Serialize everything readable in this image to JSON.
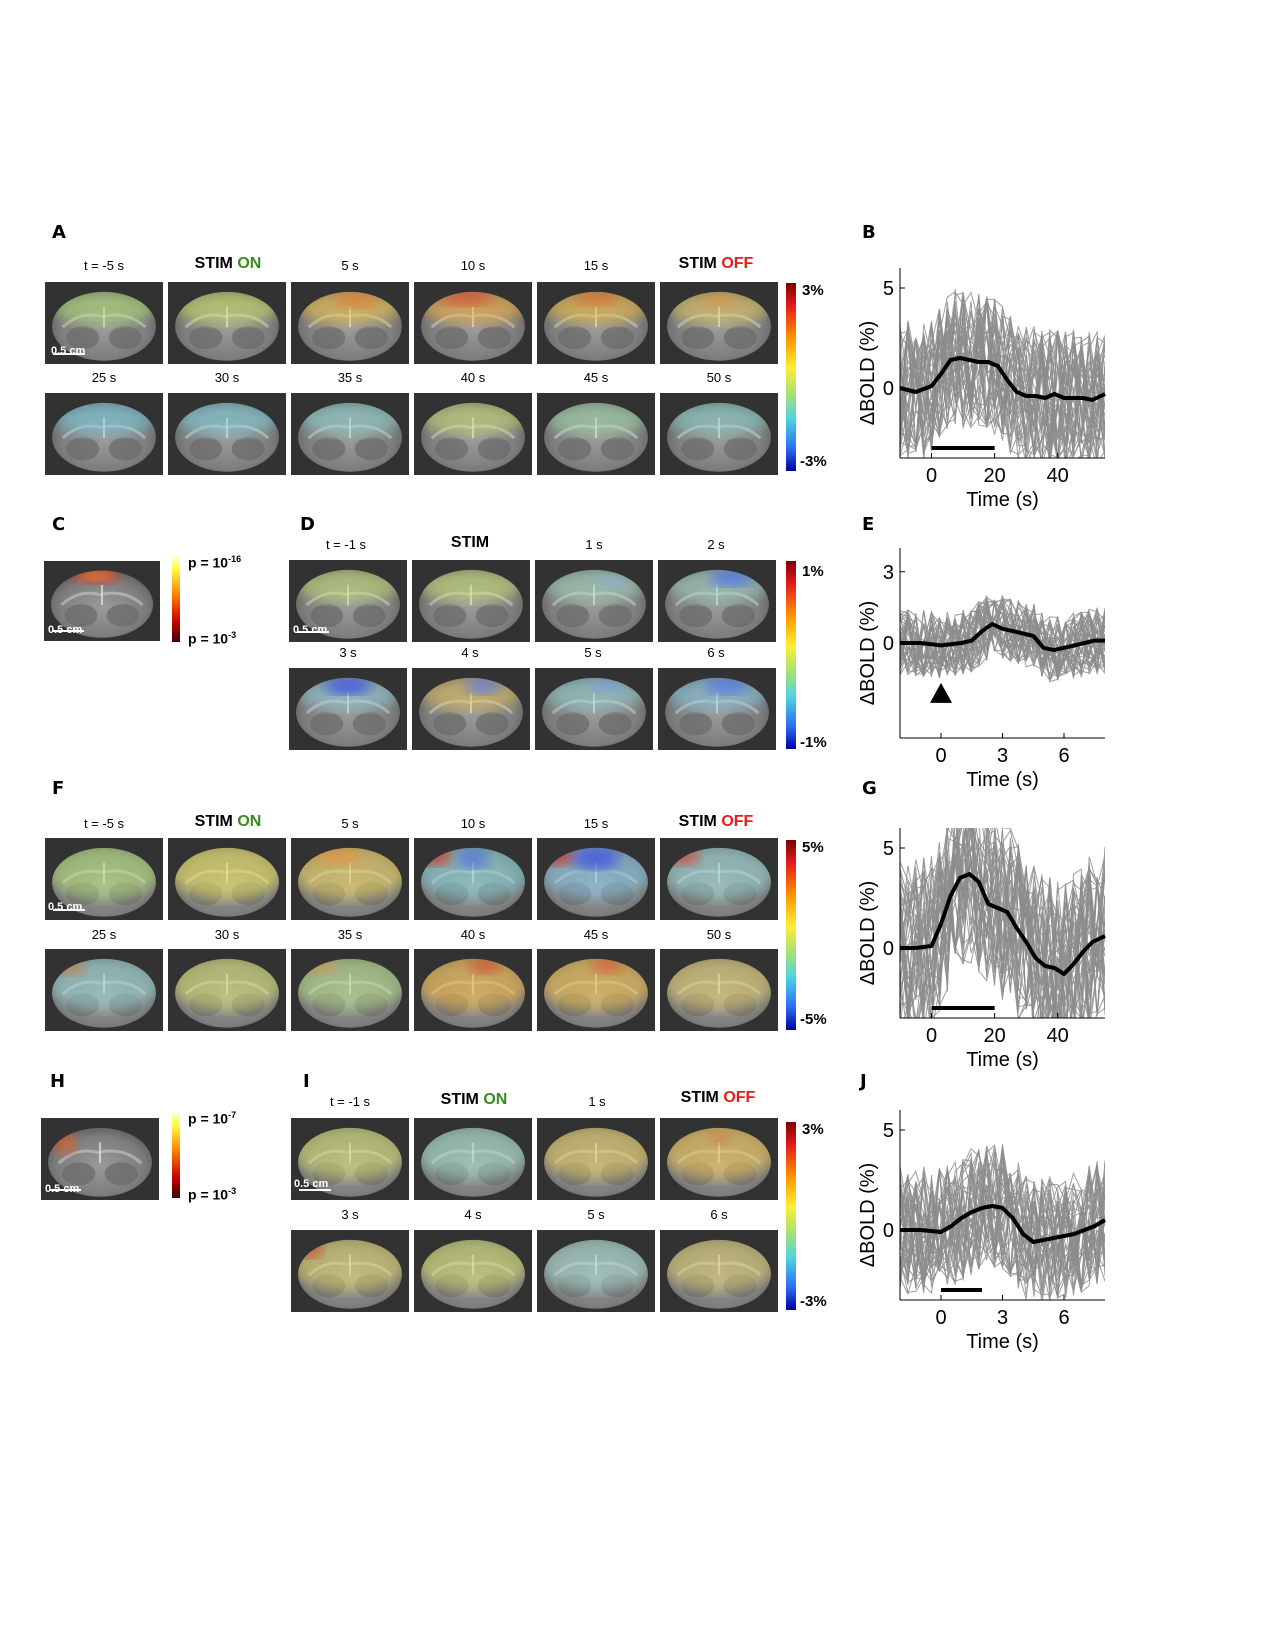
{
  "panels": {
    "A": {
      "letter": "A",
      "row1": [
        "t = -5 s",
        "",
        "5 s",
        "10 s",
        "15 s",
        ""
      ],
      "row2": [
        "25 s",
        "30 s",
        "35 s",
        "40 s",
        "45 s",
        "50 s"
      ],
      "scalebar": "0.5 cm",
      "cb_max": "3%",
      "cb_min": "-3%"
    },
    "B": {
      "letter": "B"
    },
    "C": {
      "letter": "C",
      "scalebar": "0.5 cm",
      "p_top_base": "p = 10",
      "p_top_exp": "-16",
      "p_bot_base": "p = 10",
      "p_bot_exp": "-3"
    },
    "D": {
      "letter": "D",
      "row1": [
        "t = -1 s",
        "STIM",
        "1 s",
        "2 s"
      ],
      "row2": [
        "3 s",
        "4 s",
        "5 s",
        "6 s"
      ],
      "scalebar": "0.5 cm",
      "cb_max": "1%",
      "cb_min": "-1%"
    },
    "E": {
      "letter": "E"
    },
    "F": {
      "letter": "F",
      "row1": [
        "t = -5 s",
        "",
        "5 s",
        "10 s",
        "15 s",
        ""
      ],
      "row2": [
        "25 s",
        "30 s",
        "35 s",
        "40 s",
        "45 s",
        "50 s"
      ],
      "scalebar": "0.5 cm",
      "cb_max": "5%",
      "cb_min": "-5%"
    },
    "G": {
      "letter": "G"
    },
    "H": {
      "letter": "H",
      "scalebar": "0.5 cm",
      "p_top_base": "p = 10",
      "p_top_exp": "-7",
      "p_bot_base": "p = 10",
      "p_bot_exp": "-3"
    },
    "I": {
      "letter": "I",
      "row1": [
        "t = -1 s",
        "",
        "1 s",
        ""
      ],
      "row2": [
        "3 s",
        "4 s",
        "5 s",
        "6 s"
      ],
      "scalebar": "0.5 cm",
      "cb_max": "3%",
      "cb_min": "-3%"
    },
    "J": {
      "letter": "J"
    }
  },
  "stim": {
    "word": "STIM",
    "on": "ON",
    "off": "OFF"
  },
  "colors": {
    "on": "#3b8a1e",
    "off": "#e0201b",
    "trace_gray": "#8c8c8c",
    "mean": "#000000"
  },
  "chart_data": [
    {
      "panel": "B",
      "type": "line",
      "xlabel": "Time (s)",
      "ylabel": "ΔBOLD (%)",
      "xticks": [
        0,
        20,
        40
      ],
      "yticks": [
        0,
        5
      ],
      "xlim": [
        -10,
        55
      ],
      "ylim": [
        -3.5,
        6
      ],
      "stim_bar": [
        0,
        20
      ],
      "mean_trace": {
        "x": [
          -10,
          -5,
          0,
          3,
          6,
          9,
          12,
          15,
          18,
          21,
          24,
          27,
          30,
          33,
          36,
          39,
          42,
          45,
          48,
          51,
          55
        ],
        "y": [
          0,
          -0.2,
          0.1,
          0.7,
          1.4,
          1.5,
          1.4,
          1.3,
          1.3,
          1.1,
          0.4,
          -0.2,
          -0.4,
          -0.4,
          -0.5,
          -0.3,
          -0.5,
          -0.5,
          -0.5,
          -0.6,
          -0.3
        ]
      },
      "n_gray": 40,
      "gray_amp": 3.5
    },
    {
      "panel": "E",
      "type": "line",
      "xlabel": "Time (s)",
      "ylabel": "ΔBOLD (%)",
      "xticks": [
        0,
        3,
        6
      ],
      "yticks": [
        0,
        3
      ],
      "xlim": [
        -2,
        8
      ],
      "ylim": [
        -4,
        4
      ],
      "stim_marker": 0,
      "mean_trace": {
        "x": [
          -2,
          -1,
          0,
          1,
          1.5,
          2,
          2.5,
          3,
          3.5,
          4,
          4.5,
          5,
          5.5,
          6,
          6.5,
          7,
          7.5,
          8
        ],
        "y": [
          0,
          0,
          -0.1,
          0,
          0.1,
          0.5,
          0.8,
          0.6,
          0.5,
          0.4,
          0.3,
          -0.2,
          -0.3,
          -0.2,
          -0.1,
          0,
          0.1,
          0.1
        ]
      },
      "n_gray": 40,
      "gray_amp": 1.4
    },
    {
      "panel": "G",
      "type": "line",
      "xlabel": "Time (s)",
      "ylabel": "ΔBOLD (%)",
      "xticks": [
        0,
        20,
        40
      ],
      "yticks": [
        0,
        5
      ],
      "xlim": [
        -10,
        55
      ],
      "ylim": [
        -3.5,
        6
      ],
      "stim_bar": [
        0,
        20
      ],
      "mean_trace": {
        "x": [
          -10,
          -5,
          0,
          3,
          6,
          9,
          12,
          15,
          18,
          21,
          24,
          27,
          30,
          33,
          36,
          39,
          42,
          45,
          48,
          51,
          55
        ],
        "y": [
          0,
          0,
          0.1,
          1.2,
          2.6,
          3.5,
          3.7,
          3.3,
          2.2,
          2.0,
          1.8,
          1.0,
          0.3,
          -0.5,
          -0.9,
          -1.0,
          -1.3,
          -0.8,
          -0.2,
          0.3,
          0.6
        ]
      },
      "n_gray": 40,
      "gray_amp": 4.5
    },
    {
      "panel": "J",
      "type": "line",
      "xlabel": "Time (s)",
      "ylabel": "ΔBOLD (%)",
      "xticks": [
        0,
        3,
        6
      ],
      "yticks": [
        0,
        5
      ],
      "xlim": [
        -2,
        8
      ],
      "ylim": [
        -3.5,
        6
      ],
      "stim_bar": [
        0,
        2
      ],
      "mean_trace": {
        "x": [
          -2,
          -1,
          0,
          0.5,
          1,
          1.5,
          2,
          2.5,
          3,
          3.5,
          4,
          4.5,
          5,
          5.5,
          6,
          6.5,
          7,
          7.5,
          8
        ],
        "y": [
          0,
          0,
          -0.1,
          0.2,
          0.6,
          0.9,
          1.1,
          1.2,
          1.1,
          0.6,
          -0.2,
          -0.6,
          -0.5,
          -0.4,
          -0.3,
          -0.2,
          0,
          0.2,
          0.5
        ]
      },
      "n_gray": 40,
      "gray_amp": 3.2
    }
  ]
}
